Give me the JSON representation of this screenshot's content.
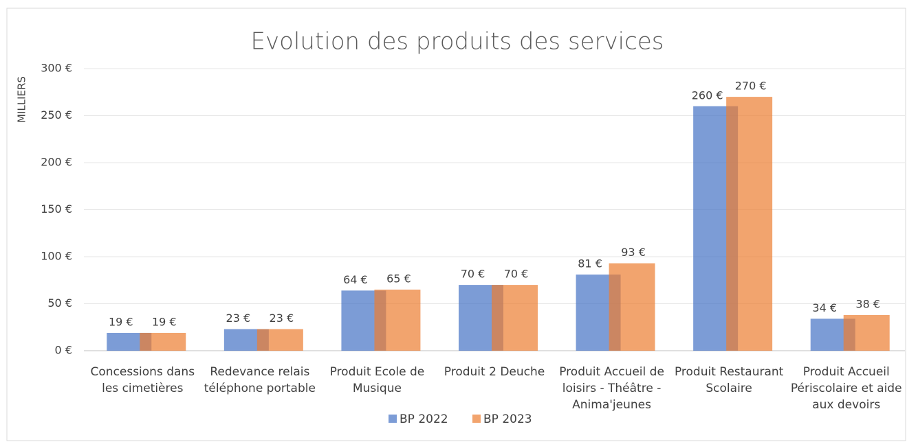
{
  "chart_data": {
    "type": "bar",
    "title": "Evolution des produits des services",
    "y_label": "MILLIERS",
    "categories": [
      "Concessions dans les cimetières",
      "Redevance relais téléphone portable",
      "Produit Ecole de Musique",
      "Produit 2 Deuche",
      "Produit Accueil de loisirs - Théâtre - Anima'jeunes",
      "Produit Restaurant Scolaire",
      "Produit Accueil Périscolaire et aide aux devoirs"
    ],
    "series": [
      {
        "name": "BP 2022",
        "color": "#4472c4",
        "values": [
          19,
          23,
          64,
          70,
          81,
          260,
          34
        ],
        "value_labels": [
          "19 €",
          "23 €",
          "64 €",
          "70 €",
          "81 €",
          "260 €",
          "34 €"
        ]
      },
      {
        "name": "BP 2023",
        "color": "#ed7d31",
        "values": [
          19,
          23,
          65,
          70,
          93,
          270,
          38
        ],
        "value_labels": [
          "19 €",
          "23 €",
          "65 €",
          "70 €",
          "93 €",
          "270 €",
          "38 €"
        ]
      }
    ],
    "ylim": [
      0,
      300
    ],
    "yticks": [
      {
        "value": 0,
        "label": "0 €"
      },
      {
        "value": 50,
        "label": "50 €"
      },
      {
        "value": 100,
        "label": "100 €"
      },
      {
        "value": 150,
        "label": "150 €"
      },
      {
        "value": 200,
        "label": "200 €"
      },
      {
        "value": 250,
        "label": "250 €"
      },
      {
        "value": 300,
        "label": "300 €"
      }
    ],
    "grid": true,
    "legend": "bottom"
  }
}
